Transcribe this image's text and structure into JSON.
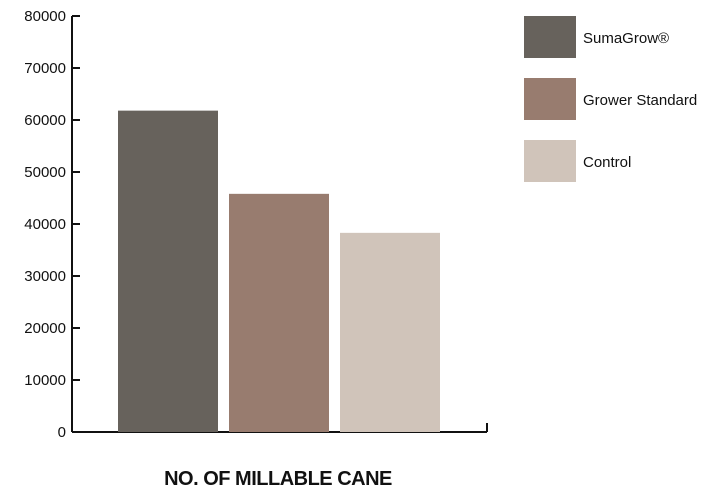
{
  "chart_data": {
    "type": "bar",
    "title": "",
    "xlabel": "NO. OF MILLABLE CANE",
    "ylabel": "",
    "ylim": [
      0,
      80000
    ],
    "yticks": [
      0,
      10000,
      20000,
      30000,
      40000,
      50000,
      60000,
      70000,
      80000
    ],
    "grid": false,
    "legend_position": "right",
    "series": [
      {
        "name": "SumaGrow®",
        "values": [
          61800
        ],
        "color": "#67625c"
      },
      {
        "name": "Grower Standard",
        "values": [
          45800
        ],
        "color": "#987c6f"
      },
      {
        "name": "Control",
        "values": [
          38300
        ],
        "color": "#d0c4ba"
      }
    ]
  }
}
